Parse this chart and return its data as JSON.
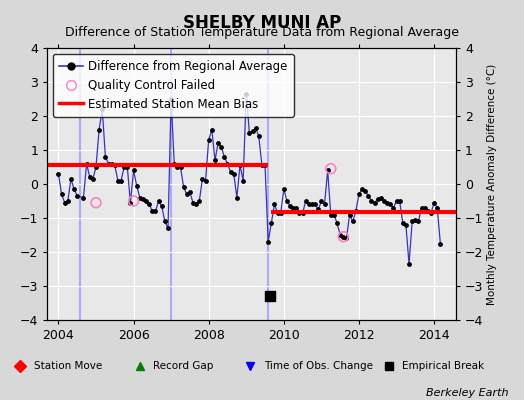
{
  "title": "SHELBY MUNI AP",
  "subtitle": "Difference of Station Temperature Data from Regional Average",
  "ylabel_right": "Monthly Temperature Anomaly Difference (°C)",
  "xlim": [
    2003.7,
    2014.58
  ],
  "ylim": [
    -4,
    4
  ],
  "yticks": [
    -4,
    -3,
    -2,
    -1,
    0,
    1,
    2,
    3,
    4
  ],
  "xticks": [
    2004,
    2006,
    2008,
    2010,
    2012,
    2014
  ],
  "fig_bg": "#d8d8d8",
  "plot_bg": "#e8e8e8",
  "grid_color": "#ffffff",
  "line_color": "#3333cc",
  "marker_color": "#000000",
  "bias1_y": 0.55,
  "bias1_xstart": 2003.7,
  "bias1_xend": 2009.58,
  "bias2_y": -0.82,
  "bias2_xstart": 2009.65,
  "bias2_xend": 2014.58,
  "empirical_break_x": 2009.62,
  "empirical_break_y": -3.28,
  "vertical_lines": [
    [
      2004.58,
      "#aaaaff"
    ],
    [
      2007.0,
      "#aaaaff"
    ],
    [
      2009.58,
      "#aaaaff"
    ]
  ],
  "station_data": [
    [
      2004.0,
      0.3
    ],
    [
      2004.083,
      -0.3
    ],
    [
      2004.167,
      -0.55
    ],
    [
      2004.25,
      -0.5
    ],
    [
      2004.333,
      0.15
    ],
    [
      2004.417,
      -0.15
    ],
    [
      2004.5,
      -0.35
    ],
    [
      2004.667,
      -0.4
    ],
    [
      2004.75,
      0.6
    ],
    [
      2004.833,
      0.2
    ],
    [
      2004.917,
      0.15
    ],
    [
      2005.0,
      0.5
    ],
    [
      2005.083,
      1.6
    ],
    [
      2005.167,
      2.2
    ],
    [
      2005.25,
      0.8
    ],
    [
      2005.333,
      0.6
    ],
    [
      2005.417,
      0.6
    ],
    [
      2005.5,
      0.55
    ],
    [
      2005.583,
      0.1
    ],
    [
      2005.667,
      0.1
    ],
    [
      2005.75,
      0.5
    ],
    [
      2005.833,
      0.5
    ],
    [
      2005.917,
      -0.55
    ],
    [
      2006.0,
      0.4
    ],
    [
      2006.083,
      -0.05
    ],
    [
      2006.167,
      -0.4
    ],
    [
      2006.25,
      -0.45
    ],
    [
      2006.333,
      -0.5
    ],
    [
      2006.417,
      -0.6
    ],
    [
      2006.5,
      -0.8
    ],
    [
      2006.583,
      -0.8
    ],
    [
      2006.667,
      -0.5
    ],
    [
      2006.75,
      -0.65
    ],
    [
      2006.833,
      -1.1
    ],
    [
      2006.917,
      -1.3
    ],
    [
      2007.0,
      2.5
    ],
    [
      2007.083,
      0.6
    ],
    [
      2007.167,
      0.5
    ],
    [
      2007.25,
      0.5
    ],
    [
      2007.333,
      -0.1
    ],
    [
      2007.417,
      -0.3
    ],
    [
      2007.5,
      -0.25
    ],
    [
      2007.583,
      -0.55
    ],
    [
      2007.667,
      -0.6
    ],
    [
      2007.75,
      -0.5
    ],
    [
      2007.833,
      0.15
    ],
    [
      2007.917,
      0.1
    ],
    [
      2008.0,
      1.3
    ],
    [
      2008.083,
      1.6
    ],
    [
      2008.167,
      0.7
    ],
    [
      2008.25,
      1.2
    ],
    [
      2008.333,
      1.1
    ],
    [
      2008.417,
      0.8
    ],
    [
      2008.5,
      0.6
    ],
    [
      2008.583,
      0.35
    ],
    [
      2008.667,
      0.3
    ],
    [
      2008.75,
      -0.4
    ],
    [
      2008.833,
      0.55
    ],
    [
      2008.917,
      0.1
    ],
    [
      2009.0,
      2.65
    ],
    [
      2009.083,
      1.5
    ],
    [
      2009.167,
      1.55
    ],
    [
      2009.25,
      1.65
    ],
    [
      2009.333,
      1.4
    ],
    [
      2009.417,
      0.55
    ],
    [
      2009.5,
      0.55
    ],
    [
      2009.583,
      -1.7
    ],
    [
      2009.667,
      -1.15
    ],
    [
      2009.75,
      -0.6
    ],
    [
      2009.833,
      -0.85
    ],
    [
      2009.917,
      -0.85
    ],
    [
      2010.0,
      -0.15
    ],
    [
      2010.083,
      -0.5
    ],
    [
      2010.167,
      -0.65
    ],
    [
      2010.25,
      -0.7
    ],
    [
      2010.333,
      -0.7
    ],
    [
      2010.417,
      -0.85
    ],
    [
      2010.5,
      -0.85
    ],
    [
      2010.583,
      -0.5
    ],
    [
      2010.667,
      -0.6
    ],
    [
      2010.75,
      -0.6
    ],
    [
      2010.833,
      -0.6
    ],
    [
      2010.917,
      -0.75
    ],
    [
      2011.0,
      -0.5
    ],
    [
      2011.083,
      -0.6
    ],
    [
      2011.167,
      0.4
    ],
    [
      2011.25,
      -0.9
    ],
    [
      2011.333,
      -0.9
    ],
    [
      2011.417,
      -1.15
    ],
    [
      2011.5,
      -1.5
    ],
    [
      2011.583,
      -1.55
    ],
    [
      2011.667,
      -1.6
    ],
    [
      2011.75,
      -0.9
    ],
    [
      2011.833,
      -1.1
    ],
    [
      2011.917,
      -0.8
    ],
    [
      2012.0,
      -0.3
    ],
    [
      2012.083,
      -0.15
    ],
    [
      2012.167,
      -0.2
    ],
    [
      2012.25,
      -0.35
    ],
    [
      2012.333,
      -0.5
    ],
    [
      2012.417,
      -0.55
    ],
    [
      2012.5,
      -0.45
    ],
    [
      2012.583,
      -0.4
    ],
    [
      2012.667,
      -0.5
    ],
    [
      2012.75,
      -0.55
    ],
    [
      2012.833,
      -0.6
    ],
    [
      2012.917,
      -0.7
    ],
    [
      2013.0,
      -0.5
    ],
    [
      2013.083,
      -0.5
    ],
    [
      2013.167,
      -1.15
    ],
    [
      2013.25,
      -1.2
    ],
    [
      2013.333,
      -2.35
    ],
    [
      2013.417,
      -1.1
    ],
    [
      2013.5,
      -1.05
    ],
    [
      2013.583,
      -1.1
    ],
    [
      2013.667,
      -0.7
    ],
    [
      2013.75,
      -0.7
    ],
    [
      2013.833,
      -0.8
    ],
    [
      2013.917,
      -0.85
    ],
    [
      2014.0,
      -0.55
    ],
    [
      2014.083,
      -0.7
    ],
    [
      2014.167,
      -1.75
    ]
  ],
  "qc_failed": [
    [
      2005.0,
      -0.55
    ],
    [
      2006.0,
      -0.5
    ],
    [
      2011.25,
      0.45
    ],
    [
      2011.583,
      -1.55
    ]
  ],
  "legend_fontsize": 8.5,
  "title_fontsize": 12,
  "subtitle_fontsize": 9,
  "tick_fontsize": 9,
  "watermark": "Berkeley Earth"
}
